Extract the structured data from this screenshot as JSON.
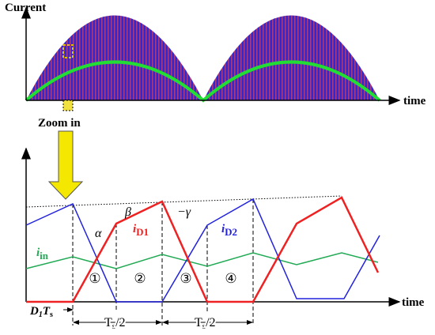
{
  "top_panel": {
    "y_axis_label": "Current",
    "x_axis_label": "time",
    "zoom_label": "Zoom in"
  },
  "bottom_panel": {
    "x_axis_label": "time",
    "angles": {
      "alpha": "α",
      "beta": "β",
      "gamma": "−γ"
    },
    "currents": {
      "d1": {
        "symbol": "i",
        "subscript": "D1"
      },
      "d2": {
        "symbol": "i",
        "subscript": "D2"
      },
      "input": {
        "symbol": "i",
        "subscript": "in"
      }
    },
    "intervals": [
      "①",
      "②",
      "③",
      "④"
    ],
    "duty_label": {
      "d": "D",
      "d_sub": "1",
      "t": "T",
      "t_sub": "s"
    },
    "half_period_labels": [
      {
        "t": "T",
        "t_sub": "s",
        "rest": "/2"
      },
      {
        "t": "T",
        "t_sub": "s",
        "rest": "/2"
      }
    ]
  }
}
